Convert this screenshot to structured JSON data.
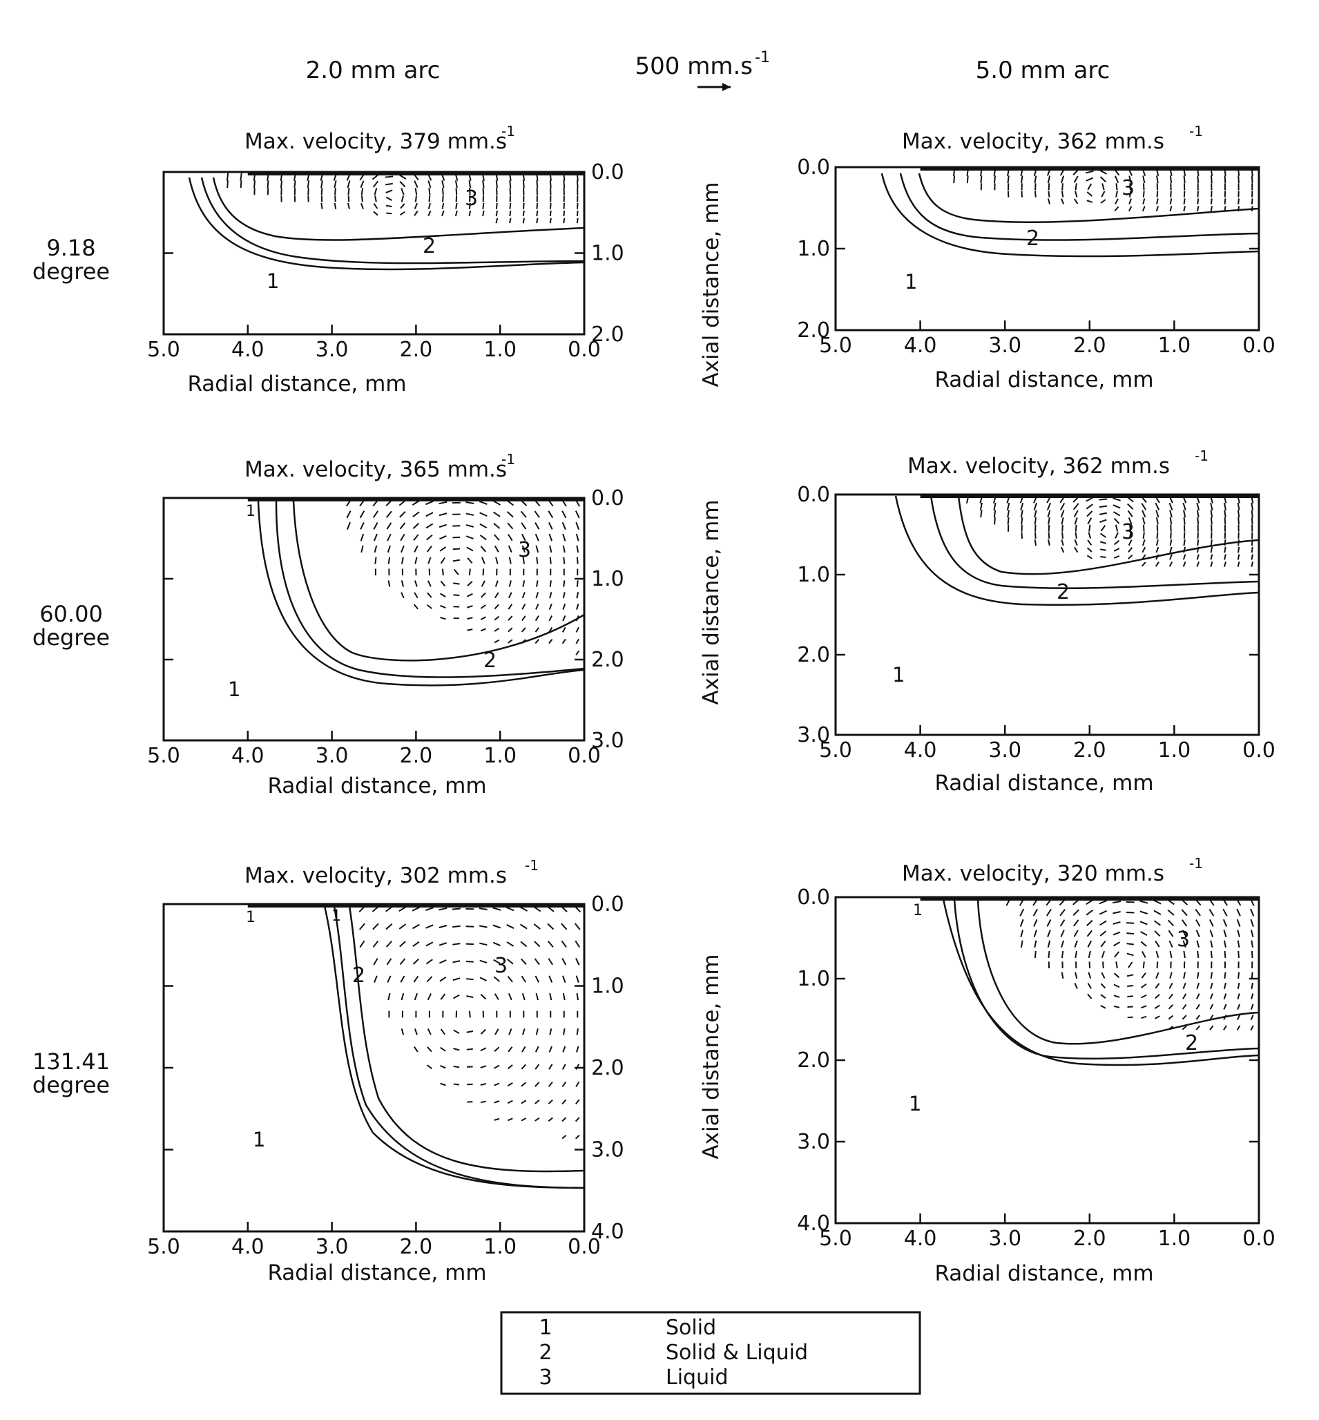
{
  "header": {
    "left_column": "2.0 mm arc",
    "right_column": "5.0 mm arc",
    "scale_arrow": "500 mm.s",
    "scale_exp": "-1"
  },
  "rows": [
    {
      "line1": "9.18",
      "line2": "degree"
    },
    {
      "line1": "60.00",
      "line2": "degree"
    },
    {
      "line1": "131.41",
      "line2": "degree"
    }
  ],
  "xlabel": "Radial distance, mm",
  "ylabel": "Axial distance, mm",
  "x_ticks": [
    "5.0",
    "4.0",
    "3.0",
    "2.0",
    "1.0",
    "0.0"
  ],
  "y_ticks": {
    "p2": [
      "0.0",
      "1.0",
      "2.0"
    ],
    "p3": [
      "0.0",
      "1.0",
      "2.0",
      "3.0"
    ],
    "p4": [
      "0.0",
      "1.0",
      "2.0",
      "3.0",
      "4.0"
    ]
  },
  "panels": [
    {
      "title": "Max. velocity, 379 mm.s",
      "exp": "-1",
      "zone_labels": [
        "1",
        "2",
        "3"
      ]
    },
    {
      "title": "Max. velocity, 362 mm.s",
      "exp": "-1",
      "zone_labels": [
        "1",
        "2",
        "3"
      ]
    },
    {
      "title": "Max. velocity, 365 mm.s",
      "exp": "-1",
      "zone_labels": [
        "1",
        "2",
        "3",
        "1"
      ]
    },
    {
      "title": "Max. velocity, 362 mm.s",
      "exp": "-1",
      "zone_labels": [
        "1",
        "2",
        "3"
      ]
    },
    {
      "title": "Max. velocity, 302 mm.s",
      "exp": "-1",
      "zone_labels": [
        "1",
        "2",
        "3",
        "1",
        "1"
      ]
    },
    {
      "title": "Max. velocity, 320 mm.s",
      "exp": "-1",
      "zone_labels": [
        "1",
        "2",
        "3",
        "1"
      ]
    }
  ],
  "legend": [
    {
      "num": "1",
      "label": "Solid"
    },
    {
      "num": "2",
      "label": "Solid & Liquid"
    },
    {
      "num": "3",
      "label": "Liquid"
    }
  ]
}
